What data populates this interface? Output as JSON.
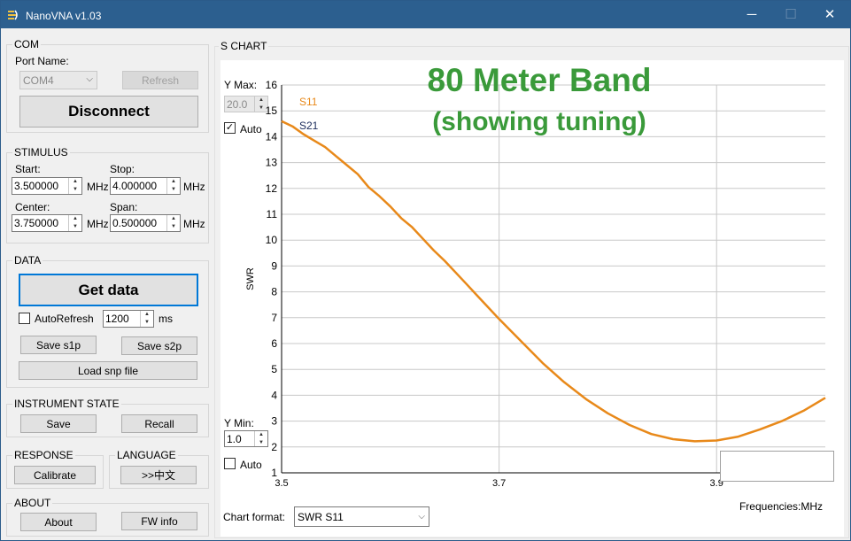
{
  "window": {
    "title": "NanoVNA v1.03",
    "controls": {
      "minimize": "─",
      "maximize": "☐",
      "close": "✕"
    }
  },
  "com": {
    "group_label": "COM",
    "port_label": "Port Name:",
    "port_value": "COM4",
    "refresh_label": "Refresh",
    "connect_label": "Disconnect"
  },
  "stimulus": {
    "group_label": "STIMULUS",
    "start_label": "Start:",
    "start_value": "3.500000",
    "stop_label": "Stop:",
    "stop_value": "4.000000",
    "center_label": "Center:",
    "center_value": "3.750000",
    "span_label": "Span:",
    "span_value": "0.500000",
    "unit": "MHz"
  },
  "data": {
    "group_label": "DATA",
    "get_data_label": "Get data",
    "autorefresh_label": "AutoRefresh",
    "autorefresh_checked": false,
    "interval_value": "1200",
    "interval_unit": "ms",
    "save_s1p": "Save s1p",
    "save_s2p": "Save s2p",
    "load_snp": "Load snp file"
  },
  "instrument_state": {
    "group_label": "INSTRUMENT STATE",
    "save_label": "Save",
    "recall_label": "Recall"
  },
  "response": {
    "group_label": "RESPONSE",
    "calibrate_label": "Calibrate"
  },
  "language": {
    "group_label": "LANGUAGE",
    "button_label": ">>中文"
  },
  "about": {
    "group_label": "ABOUT",
    "about_label": "About",
    "fwinfo_label": "FW info"
  },
  "chart_panel": {
    "group_label": "S CHART",
    "ymax_label": "Y Max:",
    "ymax_value": "20.0",
    "ymax_auto_label": "Auto",
    "ymax_auto_checked": true,
    "ymin_label": "Y Min:",
    "ymin_value": "1.0",
    "ymin_auto_label": "Auto",
    "ymin_auto_checked": false,
    "format_label": "Chart format:",
    "format_value": "SWR S11",
    "annotation_title": "80 Meter Band",
    "annotation_subtitle": "(showing tuning)"
  },
  "colors": {
    "s11": "#e8891a",
    "s21": "#1a2a5a",
    "annotation": "#3a9a3a",
    "grid": "#c8c8c8"
  },
  "chart_data": {
    "type": "line",
    "title": "",
    "xlabel": "Frequencies:MHz",
    "ylabel": "SWR",
    "xlim": [
      3.5,
      4.0
    ],
    "ylim": [
      1,
      16
    ],
    "x_ticks": [
      3.5,
      3.7,
      3.9
    ],
    "x_tick_labels": [
      "3.5",
      "3.7",
      "3.9"
    ],
    "y_ticks": [
      1,
      2,
      3,
      4,
      5,
      6,
      7,
      8,
      9,
      10,
      11,
      12,
      13,
      14,
      15,
      16
    ],
    "y_tick_labels": [
      "1",
      "2",
      "3",
      "4",
      "5",
      "6",
      "7",
      "8",
      "9",
      "10",
      "11",
      "12",
      "13",
      "14",
      "15",
      "16"
    ],
    "legend": [
      "S11",
      "S21"
    ],
    "series": [
      {
        "name": "S11",
        "x": [
          3.5,
          3.51,
          3.52,
          3.53,
          3.54,
          3.55,
          3.56,
          3.57,
          3.58,
          3.59,
          3.6,
          3.61,
          3.62,
          3.63,
          3.64,
          3.65,
          3.66,
          3.67,
          3.68,
          3.69,
          3.7,
          3.72,
          3.74,
          3.76,
          3.78,
          3.8,
          3.82,
          3.84,
          3.86,
          3.88,
          3.9,
          3.92,
          3.94,
          3.96,
          3.98,
          4.0
        ],
        "values": [
          14.6,
          14.4,
          14.1,
          13.85,
          13.6,
          13.25,
          12.9,
          12.55,
          12.05,
          11.7,
          11.3,
          10.85,
          10.5,
          10.05,
          9.6,
          9.2,
          8.75,
          8.3,
          7.85,
          7.4,
          6.95,
          6.1,
          5.25,
          4.5,
          3.85,
          3.3,
          2.85,
          2.5,
          2.3,
          2.22,
          2.25,
          2.4,
          2.68,
          3.0,
          3.4,
          3.9
        ]
      },
      {
        "name": "S21",
        "x": [],
        "values": []
      }
    ]
  }
}
